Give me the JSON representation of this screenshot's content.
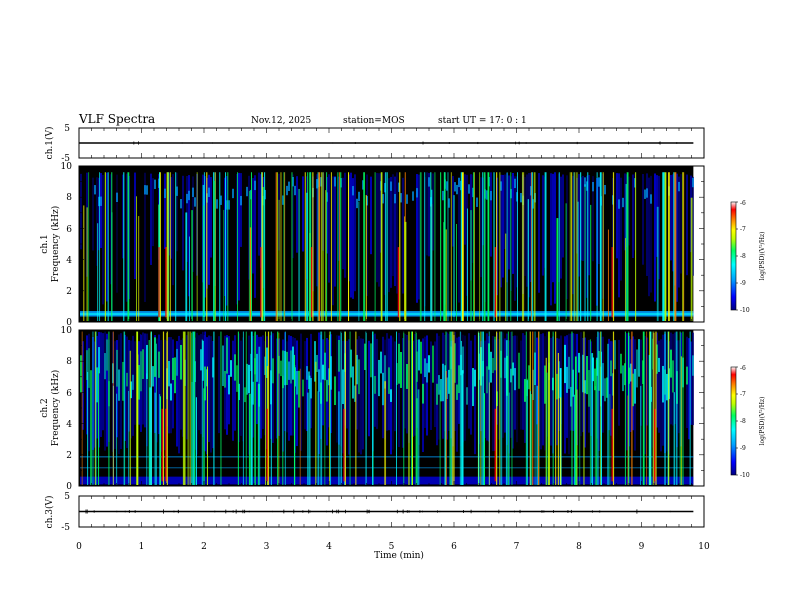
{
  "header": {
    "title": "VLF Spectra",
    "date": "Nov.12, 2025",
    "station": "station=MOS",
    "start_ut": "start  UT =   17: 0  : 1"
  },
  "chart_data": [
    {
      "id": "ch1-waveform",
      "type": "line",
      "ylabel": "ch.1(V)",
      "ylim": [
        -5,
        5
      ],
      "yticks": [
        "5",
        "-5"
      ],
      "baseline_value": 0
    },
    {
      "id": "ch1-spectrogram",
      "type": "heatmap",
      "ylabel_top": "ch.1",
      "ylabel": "Frequency  (kHz)",
      "ylim": [
        0,
        10
      ],
      "yticks": [
        "0",
        "2",
        "4",
        "6",
        "8",
        "10"
      ],
      "band_top_khz": 9.6,
      "colorbar": {
        "label": "log(PSD)(V²/Hz)",
        "range": [
          -10,
          -6
        ],
        "ticks": [
          "-6",
          "-7",
          "-8",
          "-9",
          "-10"
        ]
      }
    },
    {
      "id": "ch2-spectrogram",
      "type": "heatmap",
      "ylabel_top": "ch.2",
      "ylabel": "Frequency  (kHz)",
      "ylim": [
        0,
        10
      ],
      "yticks": [
        "0",
        "2",
        "4",
        "6",
        "8",
        "10"
      ],
      "band_top_khz": 9.9,
      "colorbar": {
        "label": "log(PSD)(V²/Hz)",
        "range": [
          -10,
          -6
        ],
        "ticks": [
          "-6",
          "-7",
          "-8",
          "-9",
          "-10"
        ]
      }
    },
    {
      "id": "ch3-waveform",
      "type": "line",
      "ylabel": "ch.3(V)",
      "ylim": [
        -5,
        5
      ],
      "yticks": [
        "5",
        "-5"
      ],
      "baseline_value": 0
    }
  ],
  "xaxis": {
    "label": "Time  (min)",
    "xlim": [
      0,
      10
    ],
    "ticks": [
      "0",
      "1",
      "2",
      "3",
      "4",
      "5",
      "6",
      "7",
      "8",
      "9",
      "10"
    ],
    "data_end_min": 9.83
  },
  "colors": {
    "background": "#000000",
    "axes": "#000000",
    "colormap": [
      "#000080",
      "#0000ff",
      "#00a0ff",
      "#00ffff",
      "#00ff60",
      "#c0ff00",
      "#ffff00",
      "#ff8000",
      "#ff0000",
      "#ffffff"
    ]
  }
}
